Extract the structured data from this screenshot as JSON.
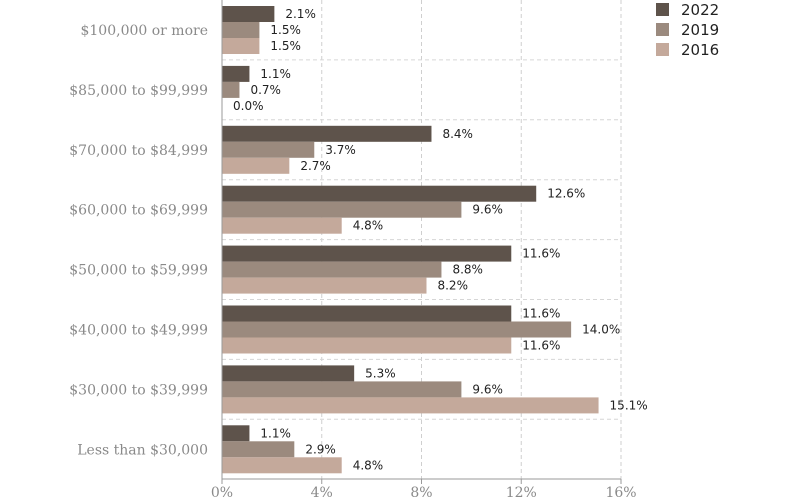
{
  "chart_data": {
    "type": "bar",
    "orientation": "horizontal",
    "categories": [
      "$100,000 or more",
      "$85,000 to $99,999",
      "$70,000 to $84,999",
      "$60,000 to $69,999",
      "$50,000 to $59,999",
      "$40,000 to $49,999",
      "$30,000 to $39,999",
      "Less than $30,000"
    ],
    "series": [
      {
        "name": "2022",
        "color": "#5e534b",
        "values": [
          2.1,
          1.1,
          8.4,
          12.6,
          11.6,
          11.6,
          5.3,
          1.1
        ],
        "labels": [
          "2.1%",
          "1.1%",
          "8.4%",
          "12.6%",
          "11.6%",
          "11.6%",
          "5.3%",
          "1.1%"
        ]
      },
      {
        "name": "2019",
        "color": "#9b8a7e",
        "values": [
          1.5,
          0.7,
          3.7,
          9.6,
          8.8,
          14.0,
          9.6,
          2.9
        ],
        "labels": [
          "1.5%",
          "0.7%",
          "3.7%",
          "9.6%",
          "8.8%",
          "14.0%",
          "9.6%",
          "2.9%"
        ]
      },
      {
        "name": "2016",
        "color": "#c4a99b",
        "values": [
          1.5,
          0.0,
          2.7,
          4.8,
          8.2,
          11.6,
          15.1,
          4.8
        ],
        "labels": [
          "1.5%",
          "0.0%",
          "2.7%",
          "4.8%",
          "8.2%",
          "11.6%",
          "15.1%",
          "4.8%"
        ]
      }
    ],
    "xlim": [
      0,
      16
    ],
    "xticks": [
      0,
      4,
      8,
      12,
      16
    ],
    "xtick_labels": [
      "0%",
      "4%",
      "8%",
      "12%",
      "16%"
    ],
    "grid": true,
    "legend_position": "top-right",
    "title": "",
    "xlabel": "",
    "ylabel": ""
  }
}
